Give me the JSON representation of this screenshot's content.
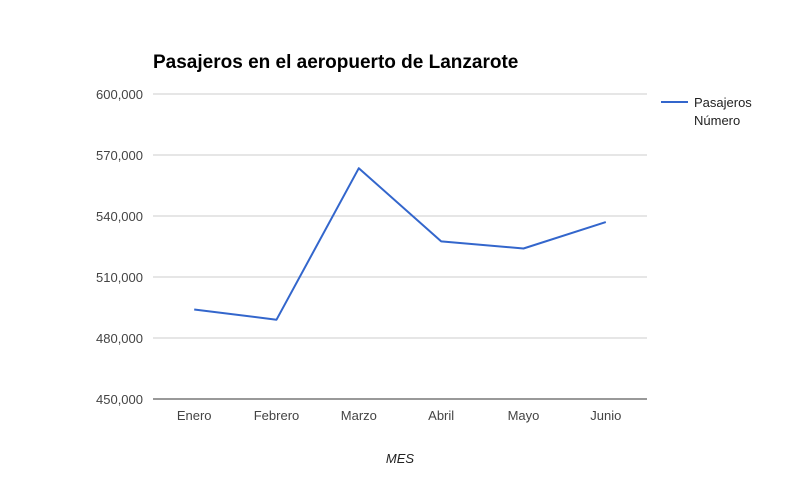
{
  "chart_data": {
    "type": "line",
    "title": "Pasajeros en el aeropuerto de Lanzarote",
    "xlabel": "MES",
    "ylabel": "",
    "categories": [
      "Enero",
      "Febrero",
      "Marzo",
      "Abril",
      "Mayo",
      "Junio"
    ],
    "ylim": [
      450000,
      600000
    ],
    "yticks": [
      450000,
      480000,
      510000,
      540000,
      570000,
      600000
    ],
    "ytick_labels": [
      "450,000",
      "480,000",
      "510,000",
      "540,000",
      "570,000",
      "600,000"
    ],
    "grid": true,
    "legend_position": "right",
    "series": [
      {
        "name": "Pasajeros Número",
        "legend_lines": [
          "Pasajeros",
          "Número"
        ],
        "color": "#3366cc",
        "values": [
          494000,
          489000,
          563500,
          527500,
          524000,
          537000
        ]
      }
    ]
  }
}
